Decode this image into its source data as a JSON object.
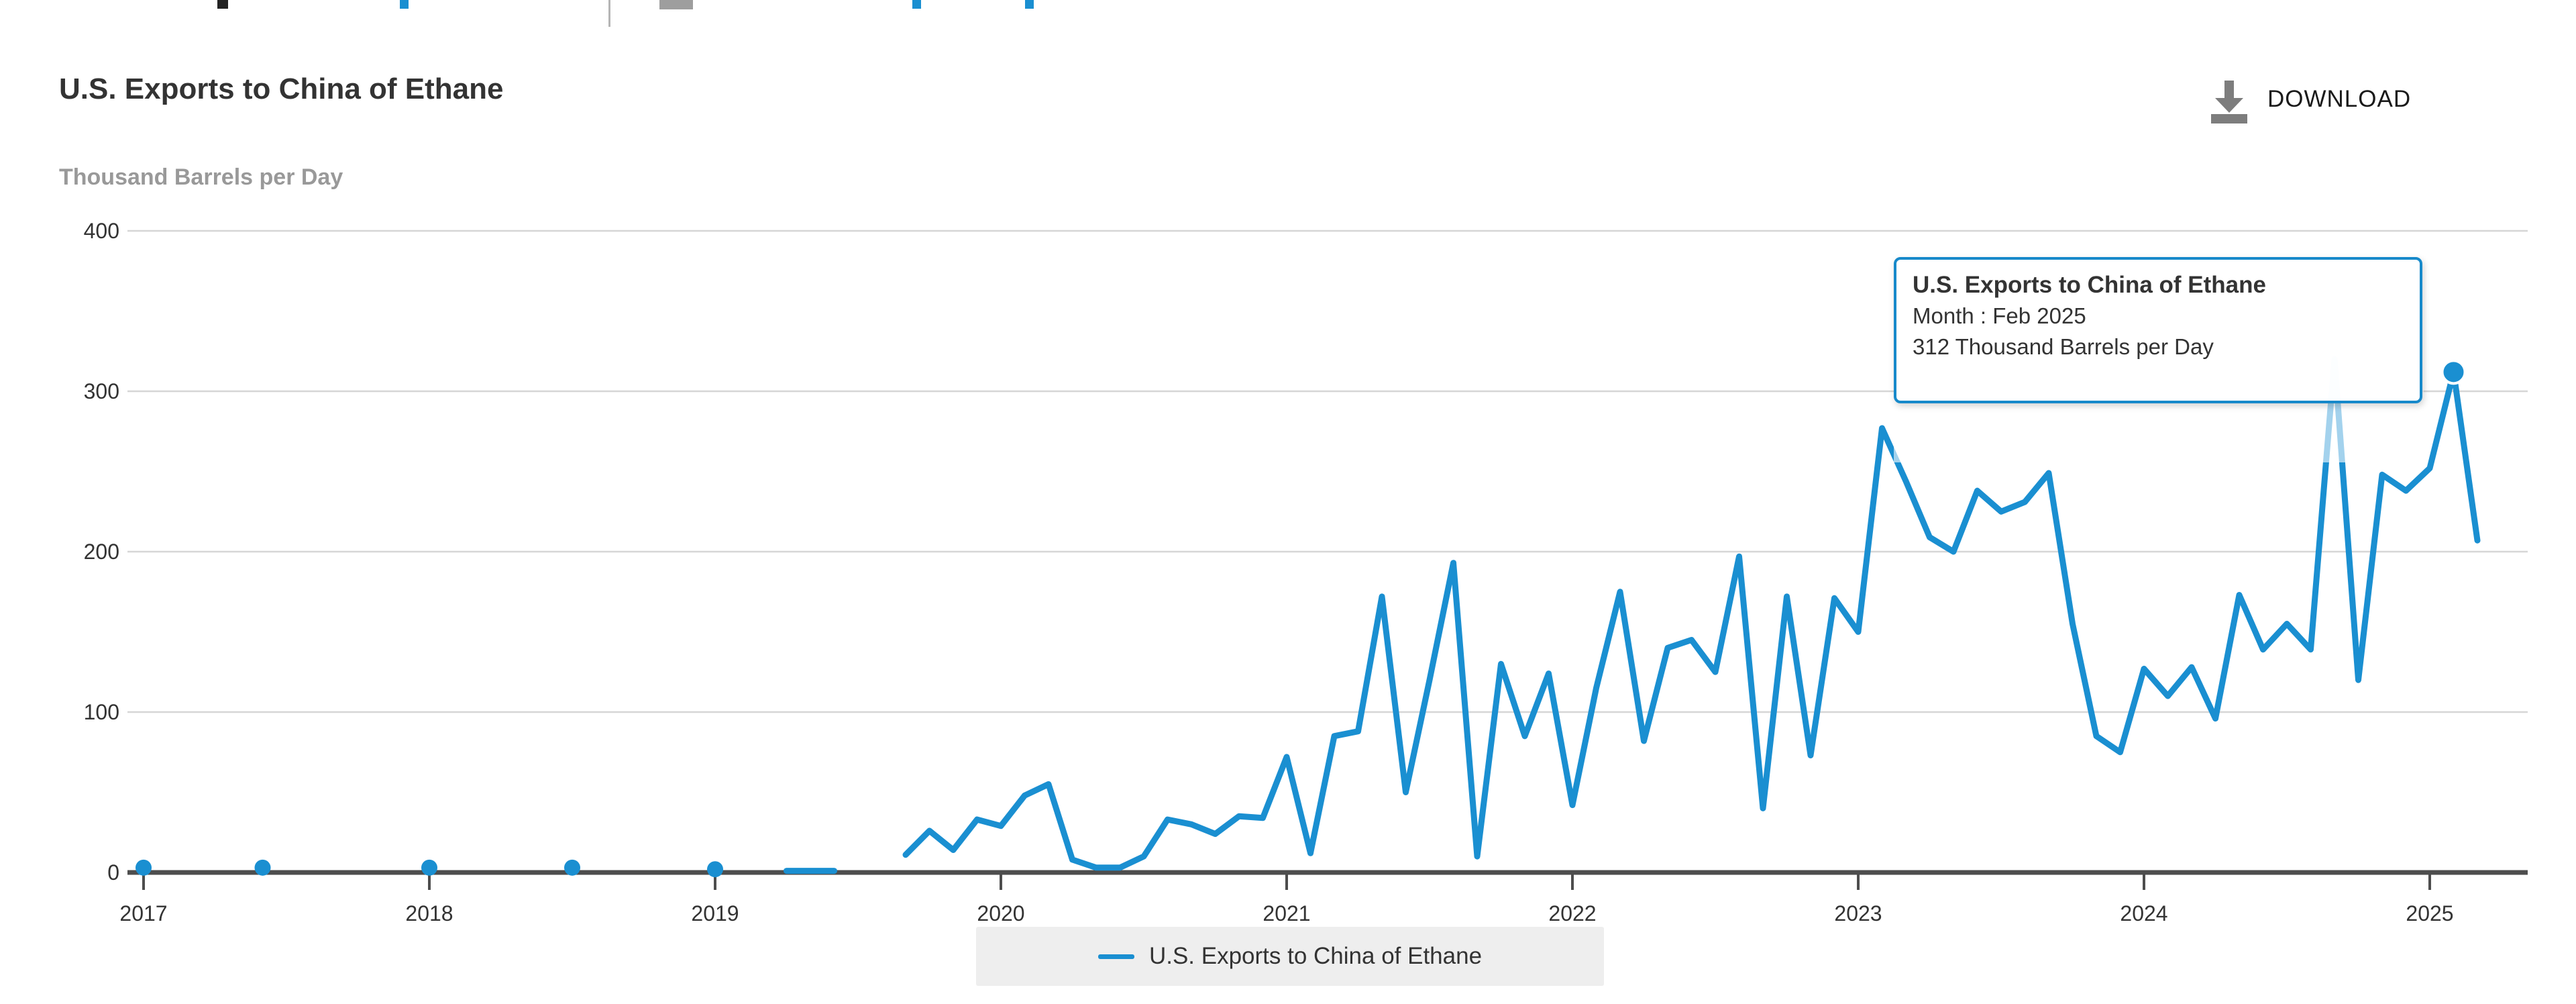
{
  "top_strip": {
    "note_fragments": [
      "cut-off-toolbar-row"
    ]
  },
  "header": {
    "title": "U.S. Exports to China of Ethane",
    "subtitle": "Thousand Barrels per Day",
    "download_label": "DOWNLOAD",
    "download_icon": "download-icon"
  },
  "tooltip": {
    "title": "U.S. Exports to China of Ethane",
    "line1": "Month : Feb 2025",
    "line2": "312 Thousand Barrels per Day",
    "border_color": "#1789ca"
  },
  "legend": {
    "label": "U.S. Exports to China of Ethane",
    "swatch_color": "#1a8fd1"
  },
  "chart_data": {
    "type": "line",
    "title": "U.S. Exports to China of Ethane",
    "ylabel": "Thousand Barrels per Day",
    "ylim": [
      0,
      400
    ],
    "yticks": [
      0,
      100,
      200,
      300,
      400
    ],
    "xticks": [
      "2017",
      "2018",
      "2019",
      "2020",
      "2021",
      "2022",
      "2023",
      "2024",
      "2025"
    ],
    "grid": true,
    "legend_position": "bottom-center",
    "x_unit": "months since Jan 2017 (index, monthly data; missing months are gaps shown as isolated dots or breaks)",
    "colors": {
      "line": "#1a8fd1",
      "grid": "#d6d6d6",
      "axis": "#4d4d4d",
      "tick_label": "#333333"
    },
    "series": [
      {
        "name": "U.S. Exports to China of Ethane",
        "color": "#1a8fd1",
        "points": [
          [
            0,
            3
          ],
          [
            5,
            3
          ],
          [
            12,
            3
          ],
          [
            18,
            3
          ],
          [
            24,
            2
          ],
          [
            27,
            1
          ],
          [
            28,
            1
          ],
          [
            29,
            1
          ],
          [
            32,
            11
          ],
          [
            33,
            26
          ],
          [
            34,
            14
          ],
          [
            35,
            33
          ],
          [
            36,
            29
          ],
          [
            37,
            48
          ],
          [
            38,
            55
          ],
          [
            39,
            8
          ],
          [
            40,
            3
          ],
          [
            41,
            3
          ],
          [
            42,
            10
          ],
          [
            43,
            33
          ],
          [
            44,
            30
          ],
          [
            45,
            24
          ],
          [
            46,
            35
          ],
          [
            47,
            34
          ],
          [
            48,
            72
          ],
          [
            49,
            12
          ],
          [
            50,
            85
          ],
          [
            51,
            88
          ],
          [
            52,
            172
          ],
          [
            53,
            50
          ],
          [
            54,
            120
          ],
          [
            55,
            193
          ],
          [
            56,
            10
          ],
          [
            57,
            130
          ],
          [
            58,
            85
          ],
          [
            59,
            124
          ],
          [
            60,
            42
          ],
          [
            61,
            115
          ],
          [
            62,
            175
          ],
          [
            63,
            82
          ],
          [
            64,
            140
          ],
          [
            65,
            145
          ],
          [
            66,
            125
          ],
          [
            67,
            197
          ],
          [
            68,
            40
          ],
          [
            69,
            172
          ],
          [
            70,
            73
          ],
          [
            71,
            171
          ],
          [
            72,
            150
          ],
          [
            73,
            277
          ],
          [
            74,
            244
          ],
          [
            75,
            209
          ],
          [
            76,
            200
          ],
          [
            77,
            238
          ],
          [
            78,
            225
          ],
          [
            79,
            231
          ],
          [
            80,
            249
          ],
          [
            81,
            155
          ],
          [
            82,
            85
          ],
          [
            83,
            75
          ],
          [
            84,
            127
          ],
          [
            85,
            110
          ],
          [
            86,
            128
          ],
          [
            87,
            96
          ],
          [
            88,
            173
          ],
          [
            89,
            139
          ],
          [
            90,
            155
          ],
          [
            91,
            139
          ],
          [
            92,
            320
          ],
          [
            93,
            120
          ],
          [
            94,
            248
          ],
          [
            95,
            238
          ],
          [
            96,
            252
          ],
          [
            97,
            312
          ],
          [
            98,
            207
          ]
        ]
      }
    ],
    "highlight_point": {
      "month": "Feb 2025",
      "index": 97,
      "value": 312
    }
  }
}
